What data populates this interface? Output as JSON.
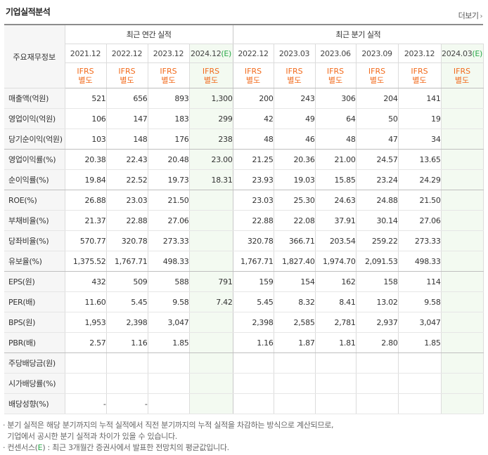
{
  "header": {
    "title": "기업실적분석",
    "more_label": "더보기",
    "more_icon": "chevron-right"
  },
  "table": {
    "row_header_label": "주요재무정보",
    "annual_group_label": "최근 연간 실적",
    "quarter_group_label": "최근 분기 실적",
    "annual_periods": [
      "2021.12",
      "2022.12",
      "2023.12",
      "2024.12"
    ],
    "quarter_periods": [
      "2022.12",
      "2023.03",
      "2023.06",
      "2023.09",
      "2023.12",
      "2024.03"
    ],
    "estimate_mark": "(E)",
    "ifrs_top": "IFRS",
    "ifrs_bottom": "별도",
    "rows": [
      {
        "label": "매출액(억원)",
        "annual": [
          "521",
          "656",
          "893",
          "1,300"
        ],
        "quarter": [
          "200",
          "243",
          "306",
          "204",
          "141",
          ""
        ]
      },
      {
        "label": "영업이익(억원)",
        "annual": [
          "106",
          "147",
          "183",
          "299"
        ],
        "quarter": [
          "42",
          "49",
          "64",
          "50",
          "19",
          ""
        ]
      },
      {
        "label": "당기순이익(억원)",
        "annual": [
          "103",
          "148",
          "176",
          "238"
        ],
        "quarter": [
          "48",
          "46",
          "48",
          "47",
          "34",
          ""
        ]
      },
      {
        "label": "영업이익률(%)",
        "annual": [
          "20.38",
          "22.43",
          "20.48",
          "23.00"
        ],
        "quarter": [
          "21.25",
          "20.36",
          "21.00",
          "24.57",
          "13.65",
          ""
        ]
      },
      {
        "label": "순이익률(%)",
        "annual": [
          "19.84",
          "22.52",
          "19.73",
          "18.31"
        ],
        "quarter": [
          "23.93",
          "19.03",
          "15.85",
          "23.24",
          "24.29",
          ""
        ]
      },
      {
        "label": "ROE(%)",
        "annual": [
          "26.88",
          "23.03",
          "21.50",
          ""
        ],
        "quarter": [
          "23.03",
          "25.30",
          "24.63",
          "24.88",
          "21.50",
          ""
        ]
      },
      {
        "label": "부채비율(%)",
        "annual": [
          "21.37",
          "22.88",
          "27.06",
          ""
        ],
        "quarter": [
          "22.88",
          "22.08",
          "37.91",
          "30.14",
          "27.06",
          ""
        ]
      },
      {
        "label": "당좌비율(%)",
        "annual": [
          "570.77",
          "320.78",
          "273.33",
          ""
        ],
        "quarter": [
          "320.78",
          "366.71",
          "203.54",
          "259.22",
          "273.33",
          ""
        ]
      },
      {
        "label": "유보율(%)",
        "annual": [
          "1,375.52",
          "1,767.71",
          "498.33",
          ""
        ],
        "quarter": [
          "1,767.71",
          "1,827.40",
          "1,974.70",
          "2,091.53",
          "498.33",
          ""
        ]
      },
      {
        "label": "EPS(원)",
        "annual": [
          "432",
          "509",
          "588",
          "791"
        ],
        "quarter": [
          "159",
          "154",
          "162",
          "158",
          "114",
          ""
        ]
      },
      {
        "label": "PER(배)",
        "annual": [
          "11.60",
          "5.45",
          "9.58",
          "7.42"
        ],
        "quarter": [
          "5.45",
          "8.32",
          "8.41",
          "13.02",
          "9.58",
          ""
        ]
      },
      {
        "label": "BPS(원)",
        "annual": [
          "1,953",
          "2,398",
          "3,047",
          ""
        ],
        "quarter": [
          "2,398",
          "2,585",
          "2,781",
          "2,937",
          "3,047",
          ""
        ]
      },
      {
        "label": "PBR(배)",
        "annual": [
          "2.57",
          "1.16",
          "1.85",
          ""
        ],
        "quarter": [
          "1.16",
          "1.87",
          "1.81",
          "2.80",
          "1.85",
          ""
        ]
      },
      {
        "label": "주당배당금(원)",
        "annual": [
          "",
          "",
          "",
          ""
        ],
        "quarter": [
          "",
          "",
          "",
          "",
          "",
          ""
        ]
      },
      {
        "label": "시가배당률(%)",
        "annual": [
          "",
          "",
          "",
          ""
        ],
        "quarter": [
          "",
          "",
          "",
          "",
          "",
          ""
        ]
      },
      {
        "label": "배당성향(%)",
        "annual": [
          "-",
          "-",
          "",
          ""
        ],
        "quarter": [
          "",
          "",
          "",
          "",
          "",
          ""
        ]
      }
    ]
  },
  "notes": {
    "line1": "· 분기 실적은 해당 분기까지의 누적 실적에서 직전 분기까지의 누적 실적을 차감하는 방식으로 계산되므로,",
    "line2": "  기업에서 공시한 분기 실적과 차이가 있을 수 있습니다.",
    "line3_pre": "· 컨센서스(",
    "line3_mark": "E",
    "line3_post": ") : 최근 3개월간 증권사에서 발표한 전망치의 평균값입니다."
  },
  "colors": {
    "ifrs_orange": "#f26b1d",
    "estimate_green": "#2aa84a",
    "estimate_bg": "#f3faf1",
    "label_bg": "#f6f6f6"
  }
}
